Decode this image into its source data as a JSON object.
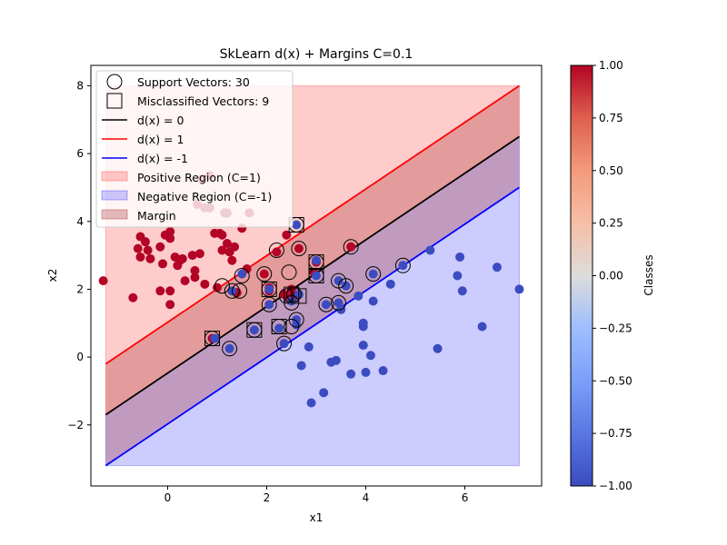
{
  "chart_data": {
    "type": "scatter",
    "title": "SkLearn d(x) + Margins C=0.1",
    "xlabel": "x1",
    "ylabel": "x2",
    "xlim": [
      -1.55,
      7.55
    ],
    "ylim": [
      -3.8,
      8.6
    ],
    "xticks": [
      0,
      2,
      4,
      6
    ],
    "yticks": [
      -2,
      0,
      2,
      4,
      6,
      8
    ],
    "xtick_labels": [
      "0",
      "2",
      "4",
      "6"
    ],
    "ytick_labels": [
      "−2",
      "0",
      "2",
      "4",
      "6",
      "8"
    ],
    "grid": false,
    "decision_function": {
      "boundary": {
        "x": [
          -1.25,
          7.1
        ],
        "y": [
          -1.7,
          6.5
        ]
      },
      "margin_plus": {
        "x": [
          -1.25,
          7.1
        ],
        "y": [
          -0.2,
          8.0
        ]
      },
      "margin_minus": {
        "x": [
          -1.25,
          7.1
        ],
        "y": [
          -3.2,
          5.0
        ]
      },
      "region_y_bounds": [
        -3.2,
        8.0
      ]
    },
    "legend": {
      "placement": "upper left",
      "entries": [
        "Support Vectors: 30",
        "Misclassified Vectors: 9",
        "d(x) = 0",
        "d(x) = 1",
        "d(x) = -1",
        "Positive Region (C=1)",
        "Negative Region (C=-1)",
        "Margin"
      ]
    },
    "colorbar": {
      "label": "Classes",
      "range": [
        -1,
        1
      ],
      "ticks": [
        "1.00",
        "0.75",
        "0.50",
        "0.25",
        "0.00",
        "−0.25",
        "−0.50",
        "−0.75",
        "−1.00"
      ]
    },
    "colors": {
      "positive_class": "#b40426",
      "negative_class": "#3b4cc0",
      "boundary": "#000000",
      "margin_plus": "#ff0000",
      "margin_minus": "#0000ff",
      "positive_region": "#ff0000",
      "negative_region": "#0000ff",
      "margin_region": "#a52a2a"
    },
    "series": [
      {
        "class": 1,
        "points": [
          [
            -1.3,
            2.25
          ],
          [
            -0.7,
            1.75
          ],
          [
            -0.6,
            3.2
          ],
          [
            -0.55,
            3.55
          ],
          [
            -0.55,
            2.95
          ],
          [
            -0.45,
            3.4
          ],
          [
            -0.4,
            3.15
          ],
          [
            -0.35,
            2.9
          ],
          [
            -0.15,
            3.25
          ],
          [
            -0.15,
            1.95
          ],
          [
            -0.1,
            2.75
          ],
          [
            -0.05,
            3.6
          ],
          [
            0.05,
            3.7
          ],
          [
            0.05,
            3.5
          ],
          [
            0.05,
            1.95
          ],
          [
            0.05,
            1.55
          ],
          [
            0.15,
            2.95
          ],
          [
            0.2,
            2.7
          ],
          [
            0.25,
            2.85
          ],
          [
            0.3,
            2.9
          ],
          [
            0.35,
            2.25
          ],
          [
            0.5,
            3.0
          ],
          [
            0.55,
            2.35
          ],
          [
            0.55,
            2.55
          ],
          [
            0.6,
            4.5
          ],
          [
            0.65,
            3.05
          ],
          [
            0.7,
            5.25
          ],
          [
            0.75,
            4.4
          ],
          [
            0.75,
            2.15
          ],
          [
            0.85,
            4.4
          ],
          [
            0.85,
            5.35
          ],
          [
            0.95,
            3.65
          ],
          [
            1.05,
            3.65
          ],
          [
            1.1,
            3.15
          ],
          [
            1.1,
            3.6
          ],
          [
            1.15,
            4.25
          ],
          [
            1.2,
            4.25
          ],
          [
            1.2,
            3.35
          ],
          [
            1.25,
            3.1
          ],
          [
            1.3,
            2.85
          ],
          [
            1.35,
            3.25
          ],
          [
            1.5,
            3.8
          ],
          [
            1.6,
            2.6
          ],
          [
            1.65,
            4.25
          ],
          [
            1.95,
            2.45
          ],
          [
            2.05,
            2.05
          ],
          [
            2.2,
            3.1
          ],
          [
            2.35,
            1.85
          ],
          [
            2.4,
            3.6
          ],
          [
            2.45,
            1.75
          ],
          [
            2.5,
            2.0
          ],
          [
            2.55,
            1.8
          ],
          [
            2.65,
            3.2
          ],
          [
            2.95,
            2.5
          ],
          [
            3.0,
            2.8
          ],
          [
            3.7,
            3.25
          ],
          [
            1.4,
            1.9
          ],
          [
            0.9,
            0.55
          ],
          [
            2.05,
            1.95
          ],
          [
            1.0,
            2.05
          ]
        ]
      },
      {
        "class": -1,
        "points": [
          [
            0.95,
            0.55
          ],
          [
            1.25,
            0.25
          ],
          [
            1.3,
            1.95
          ],
          [
            1.5,
            2.45
          ],
          [
            1.75,
            0.8
          ],
          [
            2.05,
            1.55
          ],
          [
            2.25,
            0.85
          ],
          [
            2.35,
            0.4
          ],
          [
            2.5,
            1.65
          ],
          [
            2.6,
            3.9
          ],
          [
            2.6,
            1.1
          ],
          [
            2.6,
            0.95
          ],
          [
            2.7,
            -0.25
          ],
          [
            2.85,
            0.3
          ],
          [
            2.9,
            -1.35
          ],
          [
            3.0,
            2.4
          ],
          [
            3.15,
            -1.05
          ],
          [
            3.2,
            1.55
          ],
          [
            3.3,
            -0.15
          ],
          [
            3.4,
            -0.1
          ],
          [
            3.45,
            2.25
          ],
          [
            3.45,
            1.6
          ],
          [
            3.5,
            1.4
          ],
          [
            3.6,
            2.1
          ],
          [
            3.7,
            -0.5
          ],
          [
            3.85,
            1.8
          ],
          [
            3.95,
            1.0
          ],
          [
            3.95,
            0.9
          ],
          [
            3.95,
            0.35
          ],
          [
            4.0,
            -0.45
          ],
          [
            4.1,
            0.05
          ],
          [
            4.15,
            2.45
          ],
          [
            4.15,
            1.65
          ],
          [
            4.35,
            -0.4
          ],
          [
            4.5,
            2.15
          ],
          [
            4.75,
            2.7
          ],
          [
            5.3,
            3.15
          ],
          [
            5.45,
            0.25
          ],
          [
            5.85,
            2.4
          ],
          [
            5.9,
            2.95
          ],
          [
            5.95,
            1.95
          ],
          [
            6.35,
            0.9
          ],
          [
            6.65,
            2.65
          ],
          [
            7.1,
            2.0
          ],
          [
            2.65,
            1.85
          ],
          [
            2.05,
            2.0
          ],
          [
            3.0,
            2.85
          ]
        ]
      }
    ],
    "support_vectors": [
      [
        0.9,
        0.55
      ],
      [
        1.25,
        0.25
      ],
      [
        1.1,
        2.1
      ],
      [
        1.3,
        1.95
      ],
      [
        1.45,
        1.95
      ],
      [
        1.5,
        2.4
      ],
      [
        1.75,
        0.8
      ],
      [
        1.95,
        2.45
      ],
      [
        2.05,
        2.0
      ],
      [
        2.05,
        1.55
      ],
      [
        2.2,
        3.15
      ],
      [
        2.25,
        0.9
      ],
      [
        2.35,
        0.4
      ],
      [
        2.4,
        1.8
      ],
      [
        2.45,
        2.5
      ],
      [
        2.5,
        0.9
      ],
      [
        2.5,
        1.6
      ],
      [
        2.55,
        1.85
      ],
      [
        2.6,
        1.1
      ],
      [
        2.6,
        3.9
      ],
      [
        2.65,
        3.2
      ],
      [
        3.0,
        2.8
      ],
      [
        3.0,
        2.4
      ],
      [
        3.2,
        1.55
      ],
      [
        3.45,
        2.25
      ],
      [
        3.45,
        1.6
      ],
      [
        3.6,
        2.1
      ],
      [
        3.7,
        3.25
      ],
      [
        4.15,
        2.45
      ],
      [
        4.75,
        2.7
      ]
    ],
    "misclassified_vectors": [
      [
        0.9,
        0.55
      ],
      [
        1.75,
        0.8
      ],
      [
        2.05,
        2.0
      ],
      [
        2.25,
        0.9
      ],
      [
        2.5,
        1.85
      ],
      [
        2.65,
        1.8
      ],
      [
        2.6,
        3.9
      ],
      [
        3.0,
        2.8
      ],
      [
        3.0,
        2.4
      ]
    ]
  }
}
